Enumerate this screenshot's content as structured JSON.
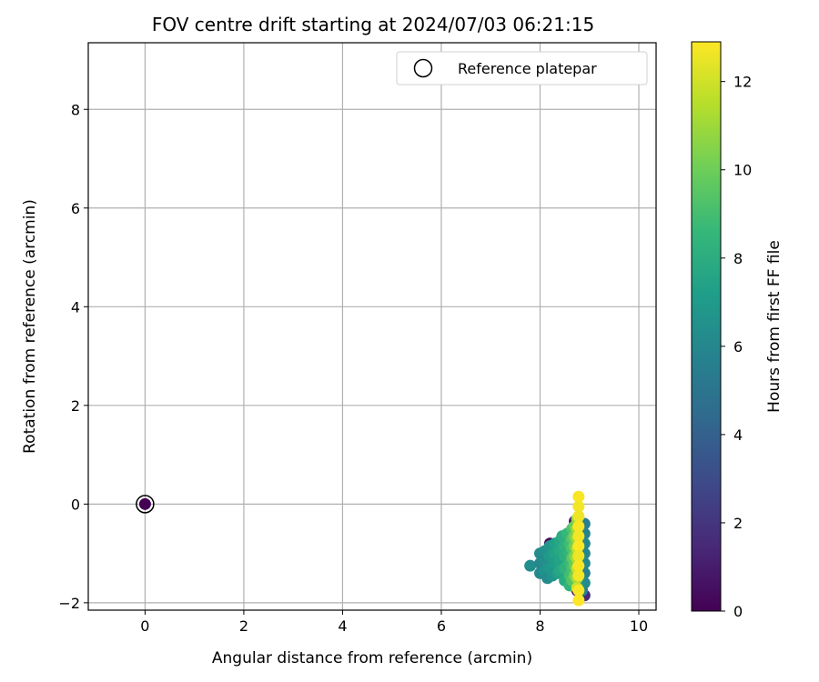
{
  "chart_data": {
    "type": "scatter",
    "title": "FOV centre drift starting at 2024/07/03 06:21:15",
    "xlabel": "Angular distance from reference (arcmin)",
    "ylabel": "Rotation from reference (arcmin)",
    "xlim": [
      -1.15,
      10.35
    ],
    "ylim": [
      -2.15,
      9.35
    ],
    "xticks": [
      0,
      2,
      4,
      6,
      8,
      10
    ],
    "xtick_labels": [
      "0",
      "2",
      "4",
      "6",
      "8",
      "10"
    ],
    "yticks": [
      -2,
      0,
      2,
      4,
      6,
      8
    ],
    "ytick_labels": [
      "−2",
      "0",
      "2",
      "4",
      "6",
      "8"
    ],
    "grid": true,
    "legend": {
      "placement": "top-right",
      "entries": [
        "Reference platepar"
      ]
    },
    "reference_point": {
      "x": 0,
      "y": 0,
      "hours": 0
    },
    "colorbar": {
      "label": "Hours from first FF file",
      "range": [
        0,
        12.9
      ],
      "ticks": [
        0,
        2,
        4,
        6,
        8,
        10,
        12
      ],
      "tick_labels": [
        "0",
        "2",
        "4",
        "6",
        "8",
        "10",
        "12"
      ],
      "colormap": "viridis",
      "colors": [
        "#440154",
        "#482878",
        "#3e4989",
        "#31688e",
        "#26828e",
        "#1f9e89",
        "#35b779",
        "#6ece58",
        "#b5de2b",
        "#fde725"
      ]
    },
    "series": [
      {
        "points": [
          [
            8.2,
            -0.8,
            0.3
          ],
          [
            8.25,
            -0.85,
            0.8
          ],
          [
            8.7,
            -0.35,
            1.2
          ],
          [
            8.9,
            -0.4,
            5.5
          ],
          [
            8.75,
            -1.75,
            0.5
          ],
          [
            8.9,
            -1.85,
            1.5
          ],
          [
            8.3,
            -0.9,
            3.0
          ],
          [
            8.5,
            -1.0,
            3.8
          ],
          [
            7.8,
            -1.25,
            6.3
          ],
          [
            8.0,
            -1.0,
            6.2
          ],
          [
            8.0,
            -1.2,
            6.0
          ],
          [
            8.0,
            -1.4,
            6.1
          ],
          [
            8.1,
            -0.95,
            6.5
          ],
          [
            8.1,
            -1.15,
            6.4
          ],
          [
            8.1,
            -1.35,
            6.6
          ],
          [
            8.15,
            -1.5,
            6.2
          ],
          [
            8.2,
            -0.85,
            6.8
          ],
          [
            8.2,
            -1.05,
            7.0
          ],
          [
            8.2,
            -1.3,
            6.9
          ],
          [
            8.25,
            -1.45,
            6.7
          ],
          [
            8.3,
            -0.8,
            7.2
          ],
          [
            8.3,
            -1.0,
            7.4
          ],
          [
            8.3,
            -1.2,
            7.1
          ],
          [
            8.35,
            -1.4,
            7.3
          ],
          [
            8.4,
            -0.75,
            7.6
          ],
          [
            8.4,
            -0.95,
            7.8
          ],
          [
            8.4,
            -1.15,
            7.5
          ],
          [
            8.4,
            -1.35,
            7.7
          ],
          [
            8.45,
            -0.65,
            8.0
          ],
          [
            8.5,
            -0.85,
            8.2
          ],
          [
            8.5,
            -1.05,
            8.1
          ],
          [
            8.5,
            -1.3,
            8.3
          ],
          [
            8.5,
            -1.55,
            7.9
          ],
          [
            8.55,
            -0.6,
            8.6
          ],
          [
            8.6,
            -0.8,
            8.8
          ],
          [
            8.6,
            -1.0,
            8.5
          ],
          [
            8.6,
            -1.2,
            8.7
          ],
          [
            8.6,
            -1.45,
            8.9
          ],
          [
            8.6,
            -1.65,
            8.4
          ],
          [
            8.65,
            -0.5,
            9.2
          ],
          [
            8.65,
            -0.7,
            9.5
          ],
          [
            8.65,
            -0.9,
            9.3
          ],
          [
            8.65,
            -1.1,
            9.6
          ],
          [
            8.65,
            -1.3,
            9.1
          ],
          [
            8.65,
            -1.55,
            9.4
          ],
          [
            8.7,
            -0.45,
            10.0
          ],
          [
            8.7,
            -0.65,
            10.3
          ],
          [
            8.7,
            -0.85,
            10.1
          ],
          [
            8.7,
            -1.05,
            10.4
          ],
          [
            8.7,
            -1.25,
            9.9
          ],
          [
            8.7,
            -1.45,
            10.2
          ],
          [
            8.9,
            -0.6,
            5.8
          ],
          [
            8.9,
            -0.8,
            6.0
          ],
          [
            8.9,
            -1.0,
            5.9
          ],
          [
            8.9,
            -1.2,
            6.1
          ],
          [
            8.9,
            -1.4,
            5.7
          ],
          [
            8.9,
            -1.6,
            6.2
          ],
          [
            8.85,
            -1.75,
            5.6
          ],
          [
            8.8,
            -1.65,
            6.4
          ],
          [
            8.75,
            -0.3,
            10.8
          ],
          [
            8.75,
            -0.5,
            11.2
          ],
          [
            8.75,
            -0.7,
            11.0
          ],
          [
            8.75,
            -0.9,
            11.5
          ],
          [
            8.75,
            -1.1,
            11.3
          ],
          [
            8.75,
            -1.3,
            11.7
          ],
          [
            8.75,
            -1.5,
            11.1
          ],
          [
            8.75,
            -1.7,
            11.9
          ],
          [
            8.78,
            0.15,
            12.8
          ],
          [
            8.78,
            -0.05,
            12.7
          ],
          [
            8.78,
            -0.25,
            12.6
          ],
          [
            8.78,
            -0.45,
            12.8
          ],
          [
            8.78,
            -0.65,
            12.7
          ],
          [
            8.78,
            -0.85,
            12.9
          ],
          [
            8.78,
            -1.05,
            12.6
          ],
          [
            8.78,
            -1.25,
            12.8
          ],
          [
            8.78,
            -1.45,
            12.7
          ],
          [
            8.78,
            -1.75,
            12.8
          ],
          [
            8.78,
            -1.95,
            12.9
          ]
        ]
      }
    ]
  }
}
